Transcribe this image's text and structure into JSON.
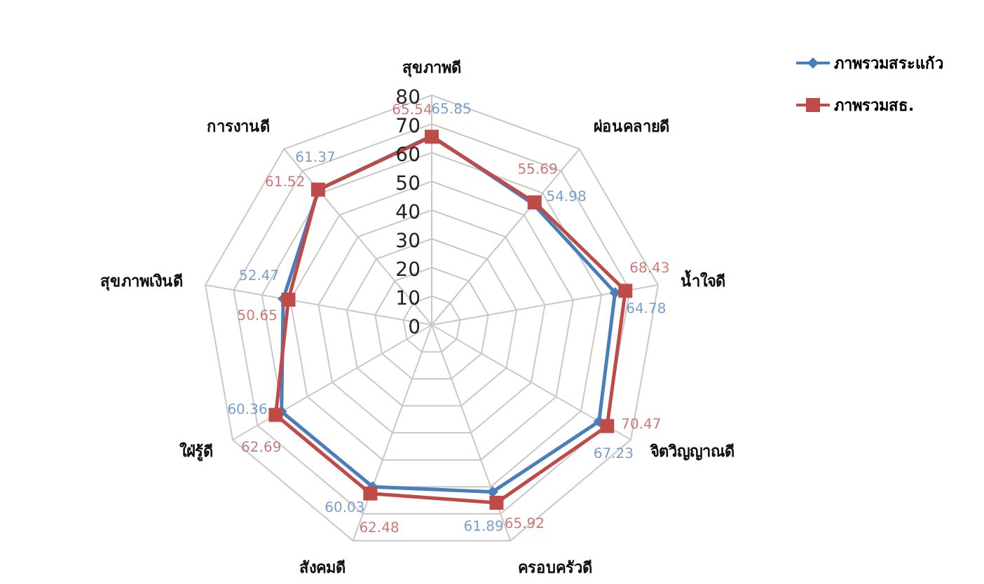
{
  "chart_data": {
    "type": "radar",
    "categories": [
      "สุขภาพดี",
      "ผ่อนคลายดี",
      "น้ำใจดี",
      "จิตวิญญาณดี",
      "ครอบครัวดี",
      "สังคมดี",
      "ใฝ่รู้ดี",
      "สุขภาพเงินดี",
      "การงานดี"
    ],
    "series": [
      {
        "name": "ภาพรวมสระแก้ว",
        "color": "#4a7ebb",
        "marker": "diamond",
        "values": [
          65.85,
          54.98,
          64.78,
          67.23,
          61.89,
          60.03,
          60.36,
          52.47,
          61.37
        ]
      },
      {
        "name": "ภาพรวมสธ.",
        "color": "#be4b48",
        "marker": "square",
        "values": [
          65.54,
          55.69,
          68.43,
          70.47,
          65.92,
          62.48,
          62.69,
          50.65,
          61.52
        ]
      }
    ],
    "ylim": [
      0,
      80
    ],
    "yticks": [
      0,
      10,
      20,
      30,
      40,
      50,
      60,
      70,
      80
    ],
    "grid": true,
    "legend": "top right",
    "data_labels": true
  }
}
